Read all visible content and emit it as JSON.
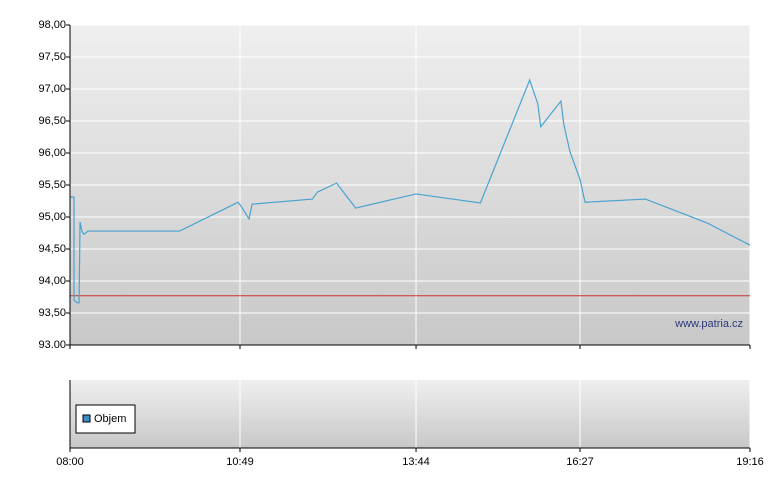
{
  "chart_data": [
    {
      "type": "line",
      "watermark": "www.patria.cz",
      "x": [
        480,
        484,
        484,
        487,
        489,
        490,
        492,
        494,
        498,
        589,
        647,
        650,
        658,
        661,
        721,
        726,
        745,
        764,
        824,
        888,
        937,
        945,
        948,
        968,
        971,
        977,
        987,
        992,
        1052,
        1113,
        1156
      ],
      "series": [
        {
          "color": "#4aa3cf",
          "values": [
            95.31,
            95.31,
            93.7,
            93.66,
            93.66,
            94.92,
            94.77,
            94.73,
            94.78,
            94.78,
            95.23,
            95.17,
            94.97,
            95.2,
            95.28,
            95.39,
            95.53,
            95.14,
            95.36,
            95.22,
            97.14,
            96.77,
            96.41,
            96.81,
            96.44,
            96.02,
            95.59,
            95.23,
            95.28,
            94.91,
            94.56
          ]
        }
      ],
      "reference_line": {
        "value": 93.77,
        "color": "#cc3333"
      },
      "xlim": [
        480,
        1156
      ],
      "xticks": [
        {
          "value": 480,
          "label": "08:00"
        },
        {
          "value": 649,
          "label": "10:49"
        },
        {
          "value": 824,
          "label": "13:44"
        },
        {
          "value": 987,
          "label": "16:27"
        },
        {
          "value": 1156,
          "label": "19:16"
        }
      ],
      "ylim": [
        93,
        98
      ],
      "yticks": [
        {
          "value": 93,
          "label": "93.00"
        },
        {
          "value": 93.5,
          "label": "93,50"
        },
        {
          "value": 94,
          "label": "94,00"
        },
        {
          "value": 94.5,
          "label": "94,50"
        },
        {
          "value": 95,
          "label": "95,00"
        },
        {
          "value": 95.5,
          "label": "95,50"
        },
        {
          "value": 96,
          "label": "96,00"
        },
        {
          "value": 96.5,
          "label": "96,50"
        },
        {
          "value": 97,
          "label": "97,00"
        },
        {
          "value": 97.5,
          "label": "97,50"
        },
        {
          "value": 98,
          "label": "98,00"
        }
      ],
      "grid": true
    },
    {
      "type": "bar",
      "series": [
        {
          "name": "Objem",
          "color": "#3d8fc4",
          "values": []
        }
      ],
      "legend": "bottom-left"
    }
  ]
}
